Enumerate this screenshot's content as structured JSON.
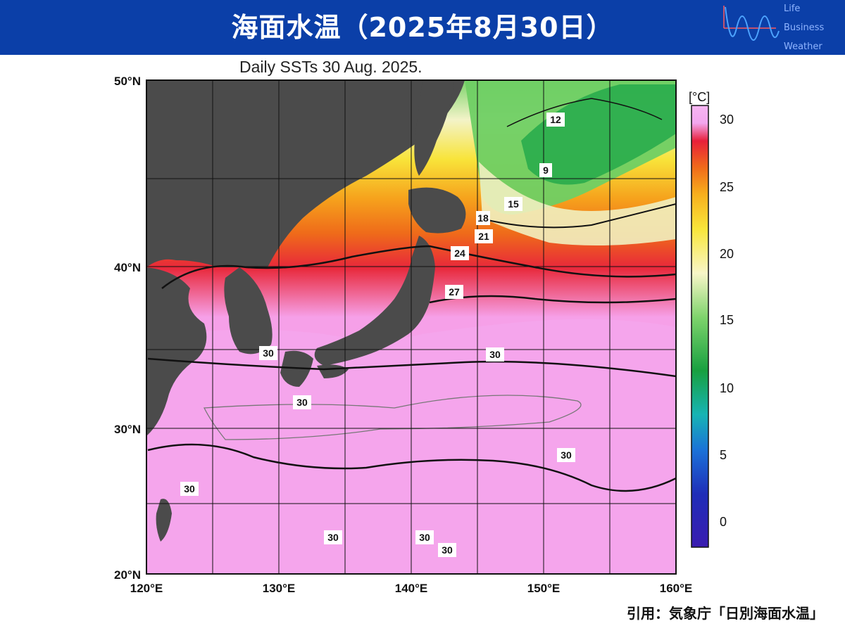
{
  "header": {
    "title": "海面水温（2025年8月30日）",
    "brand_lines": [
      "Life",
      "Business",
      "Weather"
    ]
  },
  "map": {
    "title": "Daily SSTs 30 Aug. 2025.",
    "lon_ticks": [
      "120°E",
      "130°E",
      "140°E",
      "150°E",
      "160°E"
    ],
    "lat_ticks": [
      "50°N",
      "40°N",
      "30°N",
      "20°N"
    ],
    "contour_labels": [
      "12",
      "9",
      "15",
      "18",
      "21",
      "24",
      "27",
      "30",
      "30",
      "30",
      "30",
      "30",
      "30",
      "30",
      "30"
    ],
    "land_color": "#4b4b4b"
  },
  "colorbar": {
    "unit": "[°C]",
    "ticks": [
      "30",
      "25",
      "20",
      "15",
      "10",
      "5",
      "0"
    ],
    "colors": [
      "#f3a6ee",
      "#e8203a",
      "#f06a1a",
      "#f7ae1d",
      "#f8e63a",
      "#f8f6c8",
      "#7ed36c",
      "#18a040",
      "#17b4b4",
      "#1b72d8",
      "#1f2db8",
      "#3a1cb0"
    ]
  },
  "source": "引用：気象庁「日別海面水温」"
}
